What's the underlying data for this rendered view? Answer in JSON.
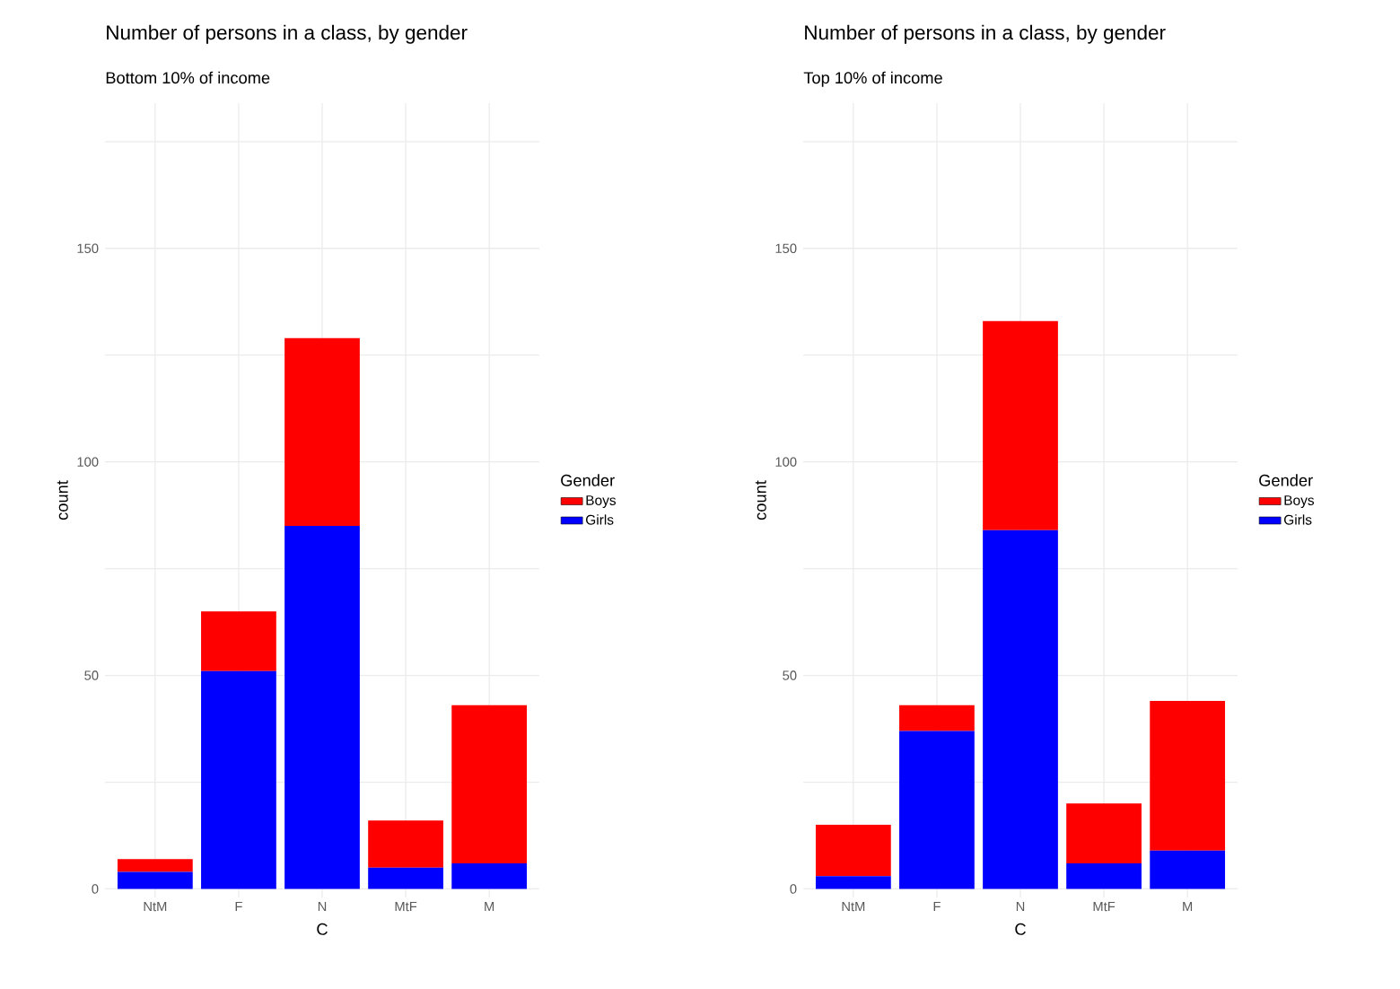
{
  "chart_data": [
    {
      "type": "bar",
      "title": "Number of persons in a class, by gender",
      "subtitle": "Bottom 10% of income",
      "xlabel": "C",
      "ylabel": "count",
      "legend_title": "Gender",
      "legend": "right",
      "grid": true,
      "stacked": true,
      "categories": [
        "NtM",
        "F",
        "N",
        "MtF",
        "M"
      ],
      "ylim": [
        -2,
        184
      ],
      "yticks": [
        0,
        {
          "value": 25,
          "label": null
        },
        50,
        {
          "value": 75,
          "label": null
        },
        100,
        {
          "value": 125,
          "label": null
        },
        150,
        {
          "value": 175,
          "label": null
        }
      ],
      "series": [
        {
          "name": "Girls",
          "color": "#0000ff",
          "values": [
            4,
            51,
            85,
            5,
            6
          ]
        },
        {
          "name": "Boys",
          "color": "#ff0000",
          "values": [
            3,
            14,
            44,
            11,
            37
          ]
        }
      ]
    },
    {
      "type": "bar",
      "title": "Number of persons in a class, by gender",
      "subtitle": "Top 10% of income",
      "xlabel": "C",
      "ylabel": "count",
      "legend_title": "Gender",
      "legend": "right",
      "grid": true,
      "stacked": true,
      "categories": [
        "NtM",
        "F",
        "N",
        "MtF",
        "M"
      ],
      "ylim": [
        -2,
        184
      ],
      "yticks": [
        0,
        {
          "value": 25,
          "label": null
        },
        50,
        {
          "value": 75,
          "label": null
        },
        100,
        {
          "value": 125,
          "label": null
        },
        150,
        {
          "value": 175,
          "label": null
        }
      ],
      "series": [
        {
          "name": "Girls",
          "color": "#0000ff",
          "values": [
            3,
            37,
            84,
            6,
            9
          ]
        },
        {
          "name": "Boys",
          "color": "#ff0000",
          "values": [
            12,
            6,
            49,
            14,
            35
          ]
        }
      ]
    }
  ]
}
